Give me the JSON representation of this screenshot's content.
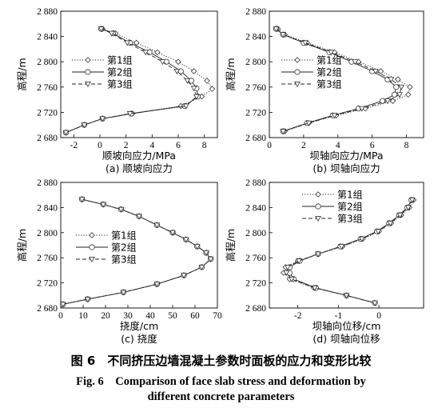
{
  "figure": {
    "caption_cn": "图 6　不同挤压边墙混凝土参数时面板的应力和变形比较",
    "caption_en_line1": "Fig. 6　Comparison of face slab stress and deformation by",
    "caption_en_line2": "different concrete parameters"
  },
  "chart_data": [
    {
      "type": "line",
      "subtitle": "(a) 顺坡向应力",
      "xlabel": "顺坡向应力/MPa",
      "ylabel": "高程/m",
      "xlim": [
        -3,
        9
      ],
      "ylim": [
        2680,
        2880
      ],
      "xticks": [
        -2,
        0,
        2,
        4,
        6,
        8
      ],
      "xtick_labels": [
        "-2",
        "0",
        "2",
        "4",
        "6",
        "8"
      ],
      "yticks": [
        2680,
        2720,
        2760,
        2800,
        2840,
        2880
      ],
      "ytick_labels": [
        "2 680",
        "2 720",
        "2 760",
        "2 800",
        "2 840",
        "2 880"
      ],
      "grid": false,
      "legend_position": "left",
      "series": [
        {
          "name": "第1组",
          "style": "dotted",
          "marker": "diamond",
          "x": [
            0.2,
            1.2,
            2.8,
            4.4,
            6.0,
            7.2,
            8.2,
            8.6,
            7.8,
            6.2,
            2.5,
            0.2,
            -1.2,
            -2.6
          ],
          "y": [
            2852,
            2845,
            2830,
            2815,
            2800,
            2785,
            2770,
            2757,
            2745,
            2730,
            2718,
            2710,
            2700,
            2688
          ]
        },
        {
          "name": "第2组",
          "style": "solid",
          "marker": "circle",
          "x": [
            0.1,
            1.0,
            2.3,
            3.8,
            5.1,
            6.2,
            7.0,
            7.4,
            7.5,
            6.5,
            2.4,
            0.2,
            -1.2,
            -2.6
          ],
          "y": [
            2852,
            2845,
            2830,
            2815,
            2800,
            2785,
            2770,
            2758,
            2745,
            2730,
            2718,
            2710,
            2700,
            2688
          ]
        },
        {
          "name": "第3组",
          "style": "dashed",
          "marker": "triangle-down",
          "x": [
            0.1,
            0.9,
            2.1,
            3.5,
            4.8,
            5.9,
            6.7,
            7.2,
            7.4,
            6.6,
            2.3,
            0.2,
            -1.2,
            -2.6
          ],
          "y": [
            2852,
            2845,
            2830,
            2815,
            2800,
            2785,
            2770,
            2758,
            2745,
            2730,
            2718,
            2710,
            2700,
            2688
          ]
        }
      ]
    },
    {
      "type": "line",
      "subtitle": "(b) 坝轴向应力",
      "xlabel": "坝轴向应力/MPa",
      "ylabel": "高程/m",
      "xlim": [
        0,
        9
      ],
      "ylim": [
        2680,
        2880
      ],
      "xticks": [
        0,
        2,
        4,
        6,
        8
      ],
      "xtick_labels": [
        "0",
        "2",
        "4",
        "6",
        "8"
      ],
      "yticks": [
        2680,
        2720,
        2760,
        2800,
        2840,
        2880
      ],
      "ytick_labels": [
        "2 680",
        "2 720",
        "2 760",
        "2 800",
        "2 840",
        "2 880"
      ],
      "grid": false,
      "legend_position": "left",
      "series": [
        {
          "name": "第1组",
          "style": "dotted",
          "marker": "diamond",
          "x": [
            0.5,
            0.9,
            2.2,
            3.8,
            5.2,
            6.5,
            7.5,
            8.2,
            8.1,
            7.2,
            5.6,
            3.9,
            2.3,
            0.9
          ],
          "y": [
            2852,
            2843,
            2830,
            2815,
            2800,
            2785,
            2772,
            2760,
            2748,
            2738,
            2726,
            2715,
            2703,
            2690
          ]
        },
        {
          "name": "第2组",
          "style": "solid",
          "marker": "circle",
          "x": [
            0.4,
            0.8,
            2.0,
            3.5,
            4.8,
            6.0,
            6.9,
            7.4,
            7.3,
            6.6,
            5.2,
            3.7,
            2.2,
            0.8
          ],
          "y": [
            2852,
            2843,
            2830,
            2815,
            2800,
            2785,
            2772,
            2760,
            2748,
            2738,
            2726,
            2715,
            2703,
            2690
          ]
        },
        {
          "name": "第3组",
          "style": "dashed",
          "marker": "triangle-down",
          "x": [
            0.4,
            0.8,
            2.1,
            3.6,
            5.0,
            6.2,
            7.1,
            7.7,
            7.6,
            6.9,
            5.4,
            3.8,
            2.3,
            0.8
          ],
          "y": [
            2852,
            2843,
            2830,
            2815,
            2800,
            2785,
            2772,
            2760,
            2748,
            2738,
            2726,
            2715,
            2703,
            2690
          ]
        }
      ]
    },
    {
      "type": "line",
      "subtitle": "(c) 挠度",
      "xlabel": "挠度/cm",
      "ylabel": "高程/m",
      "xlim": [
        0,
        70
      ],
      "ylim": [
        2680,
        2880
      ],
      "xticks": [
        0,
        10,
        20,
        30,
        40,
        50,
        60,
        70
      ],
      "xtick_labels": [
        "0",
        "10",
        "20",
        "30",
        "40",
        "50",
        "60",
        "70"
      ],
      "yticks": [
        2680,
        2720,
        2760,
        2800,
        2840,
        2880
      ],
      "ytick_labels": [
        "2 680",
        "2 720",
        "2 760",
        "2 800",
        "2 840",
        "2 880"
      ],
      "grid": false,
      "legend_position": "left",
      "series": [
        {
          "name": "第1组",
          "style": "dotted",
          "marker": "diamond",
          "x": [
            9.5,
            19,
            27,
            35,
            43,
            50,
            56,
            61,
            65,
            67,
            63,
            55,
            43,
            28,
            12,
            1
          ],
          "y": [
            2853,
            2845,
            2837,
            2826,
            2812,
            2800,
            2789,
            2778,
            2768,
            2758,
            2745,
            2732,
            2718,
            2705,
            2694,
            2686
          ]
        },
        {
          "name": "第2组",
          "style": "solid",
          "marker": "circle",
          "x": [
            9.5,
            19,
            27,
            35,
            43,
            50,
            56,
            61,
            65,
            67,
            63,
            55,
            43,
            28,
            12,
            1
          ],
          "y": [
            2853,
            2845,
            2837,
            2826,
            2812,
            2800,
            2789,
            2778,
            2768,
            2758,
            2745,
            2732,
            2718,
            2705,
            2694,
            2686
          ]
        },
        {
          "name": "第3组",
          "style": "dashed",
          "marker": "triangle-down",
          "x": [
            9.5,
            19,
            27,
            35,
            43,
            50,
            56,
            61,
            65,
            67,
            63,
            55,
            43,
            28,
            12,
            1
          ],
          "y": [
            2853,
            2845,
            2837,
            2826,
            2812,
            2800,
            2789,
            2778,
            2768,
            2758,
            2745,
            2732,
            2718,
            2705,
            2694,
            2686
          ]
        }
      ]
    },
    {
      "type": "line",
      "subtitle": "(d) 坝轴向位移",
      "xlabel": "坝轴向位移/cm",
      "ylabel": "高程/m",
      "xlim": [
        -2.7,
        1.1
      ],
      "ylim": [
        2680,
        2880
      ],
      "xticks": [
        -2,
        -1,
        0
      ],
      "xtick_labels": [
        "-2",
        "-1",
        "0"
      ],
      "yticks": [
        2680,
        2720,
        2760,
        2800,
        2840,
        2880
      ],
      "ytick_labels": [
        "2 680",
        "2 720",
        "2 760",
        "2 800",
        "2 840",
        "2 880"
      ],
      "grid": false,
      "legend_position": "top",
      "series": [
        {
          "name": "第1组",
          "style": "dotted",
          "marker": "diamond",
          "x": [
            0.85,
            0.75,
            0.55,
            0.3,
            0.0,
            -0.4,
            -0.9,
            -1.5,
            -2.0,
            -2.3,
            -2.35,
            -2.2,
            -1.6,
            -0.8,
            -0.1
          ],
          "y": [
            2852,
            2840,
            2828,
            2815,
            2802,
            2790,
            2778,
            2766,
            2755,
            2745,
            2736,
            2726,
            2712,
            2700,
            2688
          ]
        },
        {
          "name": "第2组",
          "style": "solid",
          "marker": "circle",
          "x": [
            0.8,
            0.7,
            0.5,
            0.25,
            -0.05,
            -0.45,
            -0.95,
            -1.5,
            -1.95,
            -2.2,
            -2.2,
            -2.1,
            -1.55,
            -0.8,
            -0.1
          ],
          "y": [
            2852,
            2840,
            2828,
            2815,
            2802,
            2790,
            2778,
            2766,
            2755,
            2745,
            2736,
            2726,
            2712,
            2700,
            2688
          ]
        },
        {
          "name": "第3组",
          "style": "dashed",
          "marker": "triangle-down",
          "x": [
            0.82,
            0.72,
            0.52,
            0.28,
            -0.02,
            -0.42,
            -0.92,
            -1.5,
            -1.97,
            -2.25,
            -2.28,
            -2.15,
            -1.58,
            -0.8,
            -0.1
          ],
          "y": [
            2852,
            2840,
            2828,
            2815,
            2802,
            2790,
            2778,
            2766,
            2755,
            2745,
            2736,
            2726,
            2712,
            2700,
            2688
          ]
        }
      ]
    }
  ]
}
